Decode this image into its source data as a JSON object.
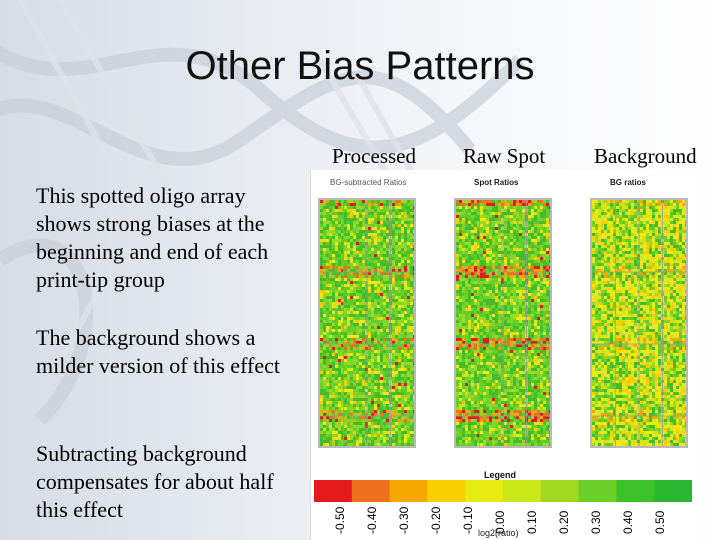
{
  "slide": {
    "title": "Other Bias Patterns",
    "bullets": [
      "This spotted oligo array shows strong biases at the beginning and end of each print-tip group",
      "The background shows a milder version of this effect",
      "Subtracting background compensates for about half this effect"
    ]
  },
  "figure": {
    "column_headers": [
      "Processed",
      "Raw Spot",
      "Background"
    ],
    "panels": [
      {
        "label": "BG-subtracted Ratios"
      },
      {
        "label": "Spot Ratios"
      },
      {
        "label": "BG ratios"
      }
    ],
    "legend": {
      "title": "Legend",
      "ticks": [
        "-0.50",
        "-0.40",
        "-0.30",
        "-0.20",
        "-0.10",
        "0.00",
        "0.10",
        "0.20",
        "0.30",
        "0.40",
        "0.50"
      ],
      "axis_label": "log2(ratio)",
      "colors": [
        "#e41a1c",
        "#f07020",
        "#f6a800",
        "#f8d000",
        "#e8ec10",
        "#c8e818",
        "#9ed820",
        "#6cce28",
        "#3cc228",
        "#2ab830"
      ]
    }
  }
}
